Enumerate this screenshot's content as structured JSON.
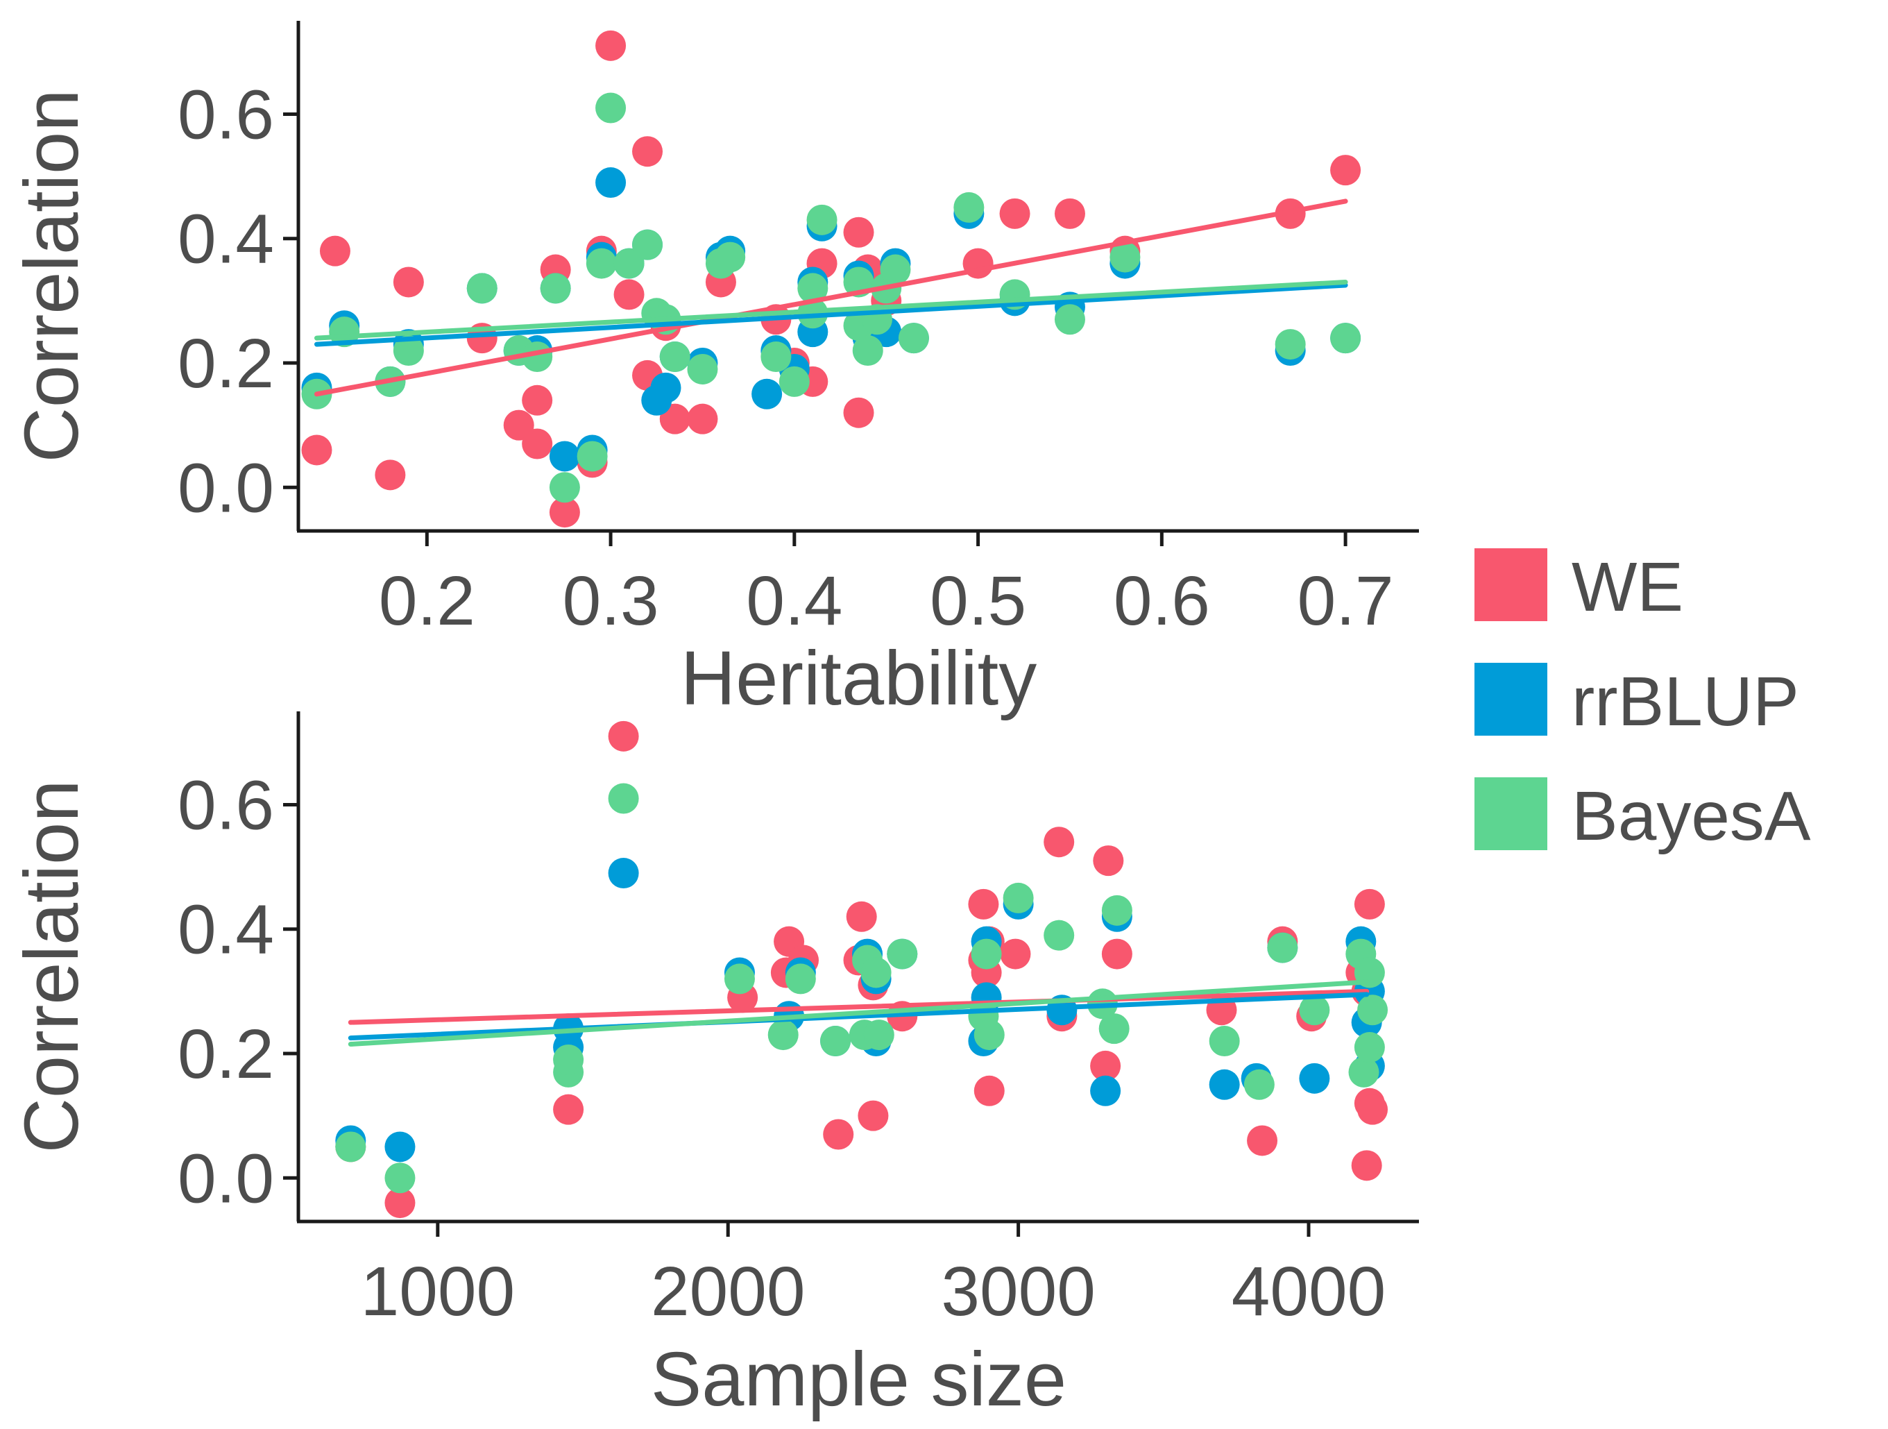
{
  "chart_data": [
    {
      "type": "scatter",
      "title": "",
      "xlabel": "Heritability",
      "ylabel": "Correlation",
      "xlim": [
        0.13,
        0.74
      ],
      "ylim": [
        -0.07,
        0.75
      ],
      "x_ticks": [
        "0.2",
        "0.3",
        "0.4",
        "0.5",
        "0.6",
        "0.7"
      ],
      "y_ticks": [
        "0.0",
        "0.2",
        "0.4",
        "0.6"
      ],
      "grid": false,
      "legend": "right",
      "series": [
        {
          "name": "WE",
          "color": "#F8576E",
          "trend": [
            [
              0.14,
              0.15
            ],
            [
              0.7,
              0.46
            ]
          ],
          "points": [
            [
              0.14,
              0.06
            ],
            [
              0.15,
              0.38
            ],
            [
              0.18,
              0.02
            ],
            [
              0.19,
              0.33
            ],
            [
              0.23,
              0.24
            ],
            [
              0.25,
              0.1
            ],
            [
              0.26,
              0.14
            ],
            [
              0.26,
              0.07
            ],
            [
              0.27,
              0.35
            ],
            [
              0.275,
              -0.04
            ],
            [
              0.29,
              0.04
            ],
            [
              0.295,
              0.38
            ],
            [
              0.3,
              0.71
            ],
            [
              0.31,
              0.31
            ],
            [
              0.32,
              0.54
            ],
            [
              0.32,
              0.18
            ],
            [
              0.33,
              0.26
            ],
            [
              0.335,
              0.11
            ],
            [
              0.35,
              0.11
            ],
            [
              0.36,
              0.33
            ],
            [
              0.39,
              0.27
            ],
            [
              0.4,
              0.2
            ],
            [
              0.41,
              0.17
            ],
            [
              0.415,
              0.36
            ],
            [
              0.435,
              0.41
            ],
            [
              0.435,
              0.12
            ],
            [
              0.44,
              0.35
            ],
            [
              0.45,
              0.3
            ],
            [
              0.5,
              0.36
            ],
            [
              0.52,
              0.44
            ],
            [
              0.55,
              0.44
            ],
            [
              0.58,
              0.38
            ],
            [
              0.67,
              0.44
            ],
            [
              0.7,
              0.51
            ]
          ]
        },
        {
          "name": "rrBLUP",
          "color": "#009CD8",
          "trend": [
            [
              0.14,
              0.23
            ],
            [
              0.7,
              0.325
            ]
          ],
          "points": [
            [
              0.14,
              0.16
            ],
            [
              0.155,
              0.26
            ],
            [
              0.18,
              0.17
            ],
            [
              0.19,
              0.23
            ],
            [
              0.23,
              0.32
            ],
            [
              0.25,
              0.22
            ],
            [
              0.26,
              0.22
            ],
            [
              0.27,
              0.32
            ],
            [
              0.275,
              0.05
            ],
            [
              0.29,
              0.06
            ],
            [
              0.295,
              0.37
            ],
            [
              0.3,
              0.49
            ],
            [
              0.31,
              0.36
            ],
            [
              0.32,
              0.39
            ],
            [
              0.325,
              0.14
            ],
            [
              0.33,
              0.16
            ],
            [
              0.335,
              0.21
            ],
            [
              0.35,
              0.2
            ],
            [
              0.36,
              0.37
            ],
            [
              0.365,
              0.38
            ],
            [
              0.385,
              0.15
            ],
            [
              0.39,
              0.22
            ],
            [
              0.4,
              0.19
            ],
            [
              0.41,
              0.25
            ],
            [
              0.41,
              0.33
            ],
            [
              0.415,
              0.42
            ],
            [
              0.435,
              0.34
            ],
            [
              0.44,
              0.24
            ],
            [
              0.45,
              0.25
            ],
            [
              0.455,
              0.36
            ],
            [
              0.465,
              0.24
            ],
            [
              0.495,
              0.44
            ],
            [
              0.52,
              0.3
            ],
            [
              0.55,
              0.29
            ],
            [
              0.58,
              0.36
            ],
            [
              0.67,
              0.22
            ],
            [
              0.7,
              0.24
            ]
          ]
        },
        {
          "name": "BayesA",
          "color": "#5DD591",
          "trend": [
            [
              0.14,
              0.24
            ],
            [
              0.7,
              0.33
            ]
          ],
          "points": [
            [
              0.14,
              0.15
            ],
            [
              0.155,
              0.25
            ],
            [
              0.18,
              0.17
            ],
            [
              0.19,
              0.22
            ],
            [
              0.23,
              0.32
            ],
            [
              0.25,
              0.22
            ],
            [
              0.26,
              0.21
            ],
            [
              0.27,
              0.32
            ],
            [
              0.275,
              0.0
            ],
            [
              0.29,
              0.05
            ],
            [
              0.295,
              0.36
            ],
            [
              0.3,
              0.61
            ],
            [
              0.31,
              0.36
            ],
            [
              0.32,
              0.39
            ],
            [
              0.325,
              0.28
            ],
            [
              0.33,
              0.27
            ],
            [
              0.335,
              0.21
            ],
            [
              0.35,
              0.19
            ],
            [
              0.36,
              0.36
            ],
            [
              0.365,
              0.37
            ],
            [
              0.39,
              0.21
            ],
            [
              0.4,
              0.17
            ],
            [
              0.41,
              0.28
            ],
            [
              0.41,
              0.32
            ],
            [
              0.415,
              0.43
            ],
            [
              0.435,
              0.33
            ],
            [
              0.435,
              0.26
            ],
            [
              0.44,
              0.22
            ],
            [
              0.445,
              0.27
            ],
            [
              0.45,
              0.32
            ],
            [
              0.455,
              0.35
            ],
            [
              0.465,
              0.24
            ],
            [
              0.495,
              0.45
            ],
            [
              0.52,
              0.31
            ],
            [
              0.55,
              0.27
            ],
            [
              0.58,
              0.37
            ],
            [
              0.67,
              0.23
            ],
            [
              0.7,
              0.24
            ]
          ]
        }
      ]
    },
    {
      "type": "scatter",
      "title": "",
      "xlabel": "Sample size",
      "ylabel": "Correlation",
      "xlim": [
        520,
        4380
      ],
      "ylim": [
        -0.07,
        0.75
      ],
      "x_ticks": [
        "1000",
        "2000",
        "3000",
        "4000"
      ],
      "y_ticks": [
        "0.0",
        "0.2",
        "0.4",
        "0.6"
      ],
      "grid": false,
      "series": [
        {
          "name": "WE",
          "color": "#F8576E",
          "trend": [
            [
              700,
              0.25
            ],
            [
              4200,
              0.3
            ]
          ],
          "points": [
            [
              700,
              0.05
            ],
            [
              870,
              -0.04
            ],
            [
              1450,
              0.11
            ],
            [
              1640,
              0.71
            ],
            [
              2050,
              0.29
            ],
            [
              2200,
              0.33
            ],
            [
              2210,
              0.38
            ],
            [
              2260,
              0.35
            ],
            [
              2380,
              0.07
            ],
            [
              2450,
              0.35
            ],
            [
              2460,
              0.42
            ],
            [
              2500,
              0.1
            ],
            [
              2500,
              0.31
            ],
            [
              2600,
              0.26
            ],
            [
              2880,
              0.35
            ],
            [
              2880,
              0.44
            ],
            [
              2890,
              0.33
            ],
            [
              2900,
              0.14
            ],
            [
              2900,
              0.38
            ],
            [
              2990,
              0.36
            ],
            [
              3140,
              0.54
            ],
            [
              3150,
              0.26
            ],
            [
              3300,
              0.18
            ],
            [
              3310,
              0.51
            ],
            [
              3340,
              0.36
            ],
            [
              3700,
              0.27
            ],
            [
              3840,
              0.06
            ],
            [
              3910,
              0.38
            ],
            [
              4010,
              0.26
            ],
            [
              4180,
              0.33
            ],
            [
              4200,
              0.02
            ],
            [
              4210,
              0.44
            ],
            [
              4210,
              0.12
            ],
            [
              4220,
              0.11
            ],
            [
              4200,
              0.3
            ]
          ]
        },
        {
          "name": "rrBLUP",
          "color": "#009CD8",
          "trend": [
            [
              700,
              0.225
            ],
            [
              4200,
              0.295
            ]
          ],
          "points": [
            [
              700,
              0.06
            ],
            [
              870,
              0.05
            ],
            [
              1450,
              0.21
            ],
            [
              1450,
              0.24
            ],
            [
              1640,
              0.49
            ],
            [
              2040,
              0.33
            ],
            [
              2210,
              0.26
            ],
            [
              2250,
              0.33
            ],
            [
              2370,
              0.22
            ],
            [
              2480,
              0.36
            ],
            [
              2510,
              0.32
            ],
            [
              2510,
              0.22
            ],
            [
              2600,
              0.36
            ],
            [
              2880,
              0.22
            ],
            [
              2890,
              0.29
            ],
            [
              2890,
              0.38
            ],
            [
              3000,
              0.44
            ],
            [
              3150,
              0.27
            ],
            [
              3300,
              0.14
            ],
            [
              3340,
              0.42
            ],
            [
              3710,
              0.15
            ],
            [
              3820,
              0.16
            ],
            [
              3910,
              0.37
            ],
            [
              4020,
              0.16
            ],
            [
              4180,
              0.38
            ],
            [
              4200,
              0.25
            ],
            [
              4210,
              0.3
            ],
            [
              4210,
              0.18
            ]
          ]
        },
        {
          "name": "BayesA",
          "color": "#5DD591",
          "trend": [
            [
              700,
              0.215
            ],
            [
              4200,
              0.315
            ]
          ],
          "points": [
            [
              700,
              0.05
            ],
            [
              870,
              0.0
            ],
            [
              1450,
              0.17
            ],
            [
              1450,
              0.19
            ],
            [
              1640,
              0.61
            ],
            [
              2040,
              0.32
            ],
            [
              2190,
              0.23
            ],
            [
              2250,
              0.32
            ],
            [
              2370,
              0.22
            ],
            [
              2470,
              0.23
            ],
            [
              2480,
              0.35
            ],
            [
              2510,
              0.33
            ],
            [
              2520,
              0.23
            ],
            [
              2600,
              0.36
            ],
            [
              2880,
              0.26
            ],
            [
              2890,
              0.36
            ],
            [
              2900,
              0.23
            ],
            [
              3000,
              0.45
            ],
            [
              3140,
              0.39
            ],
            [
              3290,
              0.28
            ],
            [
              3330,
              0.24
            ],
            [
              3340,
              0.43
            ],
            [
              3710,
              0.22
            ],
            [
              3830,
              0.15
            ],
            [
              3910,
              0.37
            ],
            [
              4020,
              0.27
            ],
            [
              4180,
              0.36
            ],
            [
              4190,
              0.17
            ],
            [
              4210,
              0.21
            ],
            [
              4210,
              0.33
            ],
            [
              4220,
              0.27
            ]
          ]
        }
      ]
    }
  ]
}
